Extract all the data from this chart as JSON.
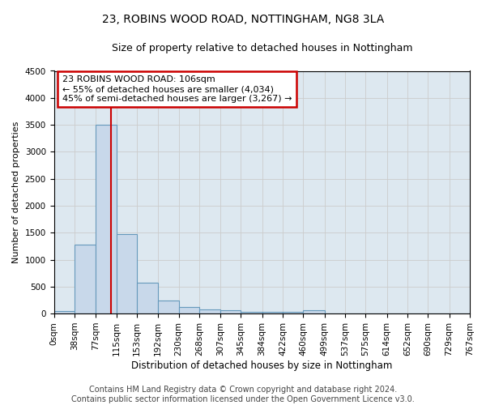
{
  "title": "23, ROBINS WOOD ROAD, NOTTINGHAM, NG8 3LA",
  "subtitle": "Size of property relative to detached houses in Nottingham",
  "xlabel": "Distribution of detached houses by size in Nottingham",
  "ylabel": "Number of detached properties",
  "bar_color": "#c8d8ea",
  "bar_edge_color": "#6699bb",
  "grid_color": "#cccccc",
  "background_color": "#ffffff",
  "plot_bg_color": "#dde8f0",
  "vline_x": 106,
  "vline_color": "#cc0000",
  "annotation_text": "23 ROBINS WOOD ROAD: 106sqm\n← 55% of detached houses are smaller (4,034)\n45% of semi-detached houses are larger (3,267) →",
  "annotation_box_color": "#cc0000",
  "bin_edges": [
    0,
    38,
    77,
    115,
    153,
    192,
    230,
    268,
    307,
    345,
    384,
    422,
    460,
    499,
    537,
    575,
    614,
    652,
    690,
    729,
    767
  ],
  "bar_heights": [
    40,
    1280,
    3500,
    1480,
    575,
    240,
    115,
    80,
    55,
    35,
    35,
    35,
    55,
    5,
    5,
    5,
    5,
    5,
    5,
    5
  ],
  "ylim": [
    0,
    4500
  ],
  "yticks": [
    0,
    500,
    1000,
    1500,
    2000,
    2500,
    3000,
    3500,
    4000,
    4500
  ],
  "footer_text": "Contains HM Land Registry data © Crown copyright and database right 2024.\nContains public sector information licensed under the Open Government Licence v3.0.",
  "title_fontsize": 10,
  "subtitle_fontsize": 9,
  "xlabel_fontsize": 8.5,
  "ylabel_fontsize": 8,
  "tick_fontsize": 7.5,
  "footer_fontsize": 7
}
